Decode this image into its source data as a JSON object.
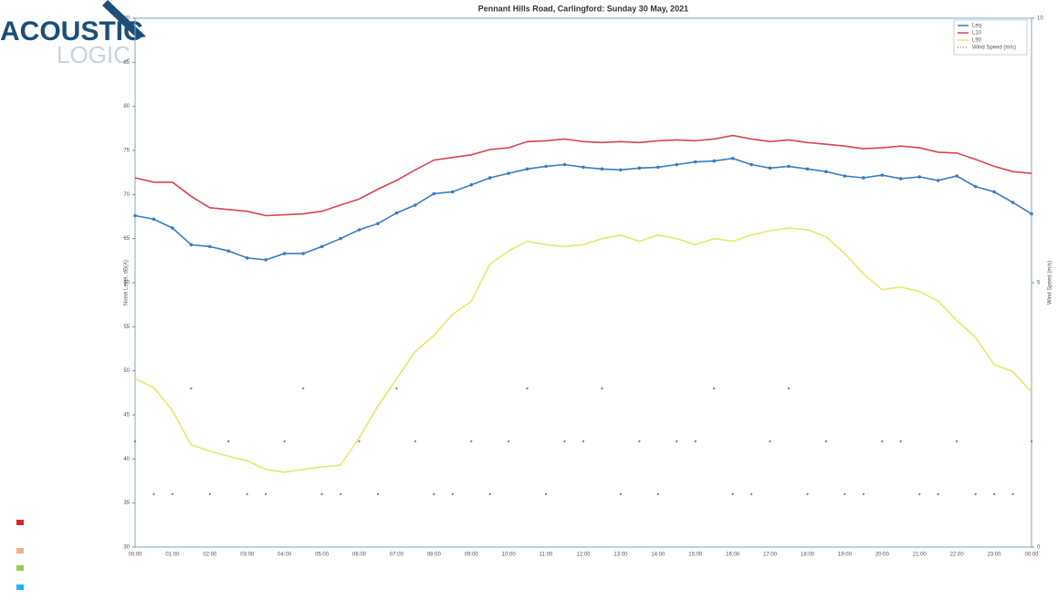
{
  "logo": {
    "line1": "ACOUSTIC",
    "line2": "LOGIC"
  },
  "chart_data": {
    "type": "line",
    "title": "Pennant Hills Road, Carlingford: Sunday 30 May, 2021",
    "y_label": "Noise Level, dB(A)",
    "y2_label": "Wind Speed (m/s)",
    "categories": [
      "00:00",
      null,
      "01:00",
      null,
      "02:00",
      null,
      "03:00",
      null,
      "04:00",
      null,
      "05:00",
      null,
      "06:00",
      null,
      "07:00",
      null,
      "08:00",
      null,
      "09:00",
      null,
      "10:00",
      null,
      "11:00",
      null,
      "12:00",
      null,
      "13:00",
      null,
      "14:00",
      null,
      "15:00",
      null,
      "16:00",
      null,
      "17:00",
      null,
      "18:00",
      null,
      "19:00",
      null,
      "20:00",
      null,
      "21:00",
      null,
      "22:00",
      null,
      "23:00",
      null,
      "00:00"
    ],
    "series": [
      {
        "name": "Leq",
        "color": "#3a7dc0",
        "markers": true,
        "values": [
          67.6,
          67.2,
          66.2,
          64.3,
          64.1,
          63.6,
          62.8,
          62.6,
          63.3,
          63.3,
          64.1,
          65.0,
          66.0,
          66.7,
          67.9,
          68.8,
          70.1,
          70.3,
          71.1,
          71.9,
          72.4,
          72.9,
          73.2,
          73.4,
          73.1,
          72.9,
          72.8,
          73.0,
          73.1,
          73.4,
          73.7,
          73.8,
          74.1,
          73.4,
          73.0,
          73.2,
          72.9,
          72.6,
          72.1,
          71.9,
          72.2,
          71.8,
          72.0,
          71.6,
          72.1,
          70.9,
          70.3,
          69.1,
          67.8
        ]
      },
      {
        "name": "L10",
        "color": "#d9434f",
        "markers": false,
        "values": [
          71.9,
          71.4,
          71.4,
          69.8,
          68.5,
          68.3,
          68.1,
          67.6,
          67.7,
          67.8,
          68.1,
          68.8,
          69.5,
          70.6,
          71.6,
          72.8,
          73.9,
          74.2,
          74.5,
          75.1,
          75.3,
          76.0,
          76.1,
          76.3,
          76.0,
          75.9,
          76.0,
          75.9,
          76.1,
          76.2,
          76.1,
          76.3,
          76.7,
          76.3,
          76.0,
          76.2,
          75.9,
          75.7,
          75.5,
          75.2,
          75.3,
          75.5,
          75.3,
          74.8,
          74.7,
          74.0,
          73.2,
          72.6,
          72.4
        ]
      },
      {
        "name": "L90",
        "color": "#e8e86a",
        "markers": false,
        "values": [
          49.1,
          48.1,
          45.5,
          41.6,
          40.9,
          40.3,
          39.8,
          38.8,
          38.5,
          38.8,
          39.1,
          39.3,
          42.4,
          46.0,
          49.1,
          52.2,
          54.0,
          56.4,
          57.9,
          62.1,
          63.6,
          64.7,
          64.3,
          64.1,
          64.3,
          65.0,
          65.4,
          64.7,
          65.4,
          65.0,
          64.3,
          65.0,
          64.7,
          65.4,
          65.9,
          66.2,
          66.0,
          65.2,
          63.3,
          61.0,
          59.2,
          59.5,
          59.0,
          57.9,
          55.7,
          53.8,
          50.7,
          49.9,
          47.6
        ]
      },
      {
        "name": "Wind Speed (m/s)",
        "color": "#8a8a8a",
        "axis": "y2",
        "dots": true,
        "values": [
          2,
          1,
          1,
          3,
          1,
          2,
          1,
          1,
          2,
          3,
          1,
          1,
          2,
          1,
          3,
          2,
          1,
          1,
          2,
          1,
          2,
          3,
          1,
          2,
          2,
          3,
          1,
          2,
          1,
          2,
          2,
          3,
          1,
          1,
          2,
          3,
          1,
          2,
          1,
          1,
          2,
          2,
          1,
          1,
          2,
          1,
          1,
          1,
          2
        ]
      }
    ],
    "ylim": [
      30,
      90
    ],
    "yticks": [
      30,
      35,
      40,
      45,
      50,
      55,
      60,
      65,
      70,
      75,
      80,
      85,
      90
    ],
    "y2lim": [
      0,
      10
    ],
    "y2ticks": [
      0,
      5,
      10
    ],
    "legend": "upper right"
  }
}
